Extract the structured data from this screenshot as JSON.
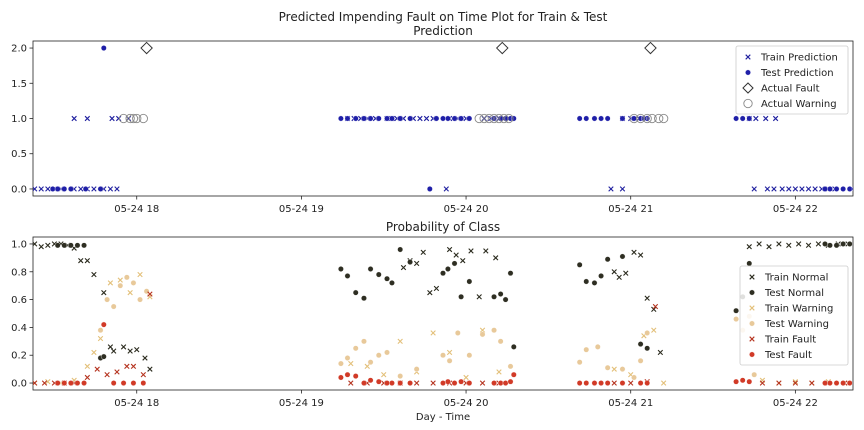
{
  "figure": {
    "suptitle": "Predicted Impending Fault on Time Plot for Train & Test",
    "xlabel": "Day - Time"
  },
  "chart_data": [
    {
      "type": "scatter",
      "title": "Prediction",
      "xlim": [
        17.37,
        22.35
      ],
      "ylim": [
        -0.1,
        2.1
      ],
      "yticks": [
        "0.0",
        "0.5",
        "1.0",
        "1.5",
        "2.0"
      ],
      "ytick_values": [
        0,
        0.5,
        1.0,
        1.5,
        2.0
      ],
      "xticks": [
        "05-24 18",
        "05-24 19",
        "05-24 20",
        "05-24 21",
        "05-24 22"
      ],
      "xtick_values": [
        18,
        19,
        20,
        21,
        22
      ],
      "legend_position": "right",
      "series": [
        {
          "name": "Train Prediction",
          "marker": "x",
          "color": "#1f1f9f",
          "x": [
            17.38,
            17.42,
            17.46,
            17.5,
            17.54,
            17.62,
            17.66,
            17.7,
            17.74,
            17.8,
            17.84,
            17.88,
            17.62,
            17.7,
            17.85,
            17.89,
            17.95,
            19.28,
            19.32,
            19.36,
            19.4,
            19.45,
            19.52,
            19.55,
            19.58,
            19.62,
            19.68,
            19.72,
            19.76,
            19.8,
            19.9,
            19.95,
            20.0,
            19.88,
            20.11,
            20.15,
            20.2,
            20.95,
            21.0,
            21.05,
            21.09,
            20.88,
            20.95,
            21.05,
            21.72,
            21.76,
            21.82,
            21.88,
            21.75,
            21.83,
            21.87,
            21.92,
            21.96,
            22.0,
            22.04,
            22.08,
            22.12,
            22.16,
            22.2,
            22.24
          ],
          "y": [
            0,
            0,
            0,
            0,
            0,
            0,
            0,
            0,
            0,
            0,
            0,
            0,
            1,
            1,
            1,
            1,
            1,
            1,
            1,
            1,
            1,
            1,
            1,
            1,
            1,
            1,
            1,
            1,
            1,
            1,
            1,
            1,
            1,
            0,
            1,
            1,
            1,
            1,
            1,
            1,
            1,
            0,
            0,
            1,
            1,
            1,
            1,
            1,
            0,
            0,
            0,
            0,
            0,
            0,
            0,
            0,
            0,
            0,
            0,
            0
          ]
        },
        {
          "name": "Test Prediction",
          "marker": "dot",
          "color": "#1f1fa8",
          "x": [
            17.49,
            17.52,
            17.56,
            17.6,
            17.78,
            17.8,
            17.69,
            19.24,
            19.28,
            19.33,
            19.38,
            19.42,
            19.47,
            19.52,
            19.55,
            19.6,
            19.66,
            19.82,
            19.86,
            19.89,
            19.93,
            19.97,
            20.02,
            20.17,
            20.21,
            20.24,
            20.27,
            20.29,
            19.78,
            20.69,
            20.73,
            20.78,
            20.82,
            20.86,
            20.95,
            21.02,
            21.06,
            21.1,
            21.64,
            21.68,
            21.72,
            21.08,
            22.18,
            22.21,
            22.25,
            22.29,
            22.33,
            22.36
          ],
          "y": [
            0,
            0,
            0,
            0,
            0,
            2,
            0,
            1,
            1,
            1,
            1,
            1,
            1,
            1,
            1,
            1,
            1,
            1,
            1,
            1,
            1,
            1,
            1,
            1,
            1,
            1,
            1,
            1,
            0,
            1,
            1,
            1,
            1,
            1,
            1,
            1,
            1,
            1,
            1,
            1,
            1,
            1,
            0,
            0,
            0,
            0,
            0,
            0
          ]
        },
        {
          "name": "Actual Fault",
          "marker": "diamond",
          "color": "#333333",
          "x": [
            18.06,
            20.22,
            21.12
          ],
          "y": [
            2,
            2,
            2
          ]
        },
        {
          "name": "Actual Warning",
          "marker": "circle",
          "color": "#8a8a8a",
          "x": [
            17.92,
            17.96,
            18.0,
            18.04,
            17.98,
            20.08,
            20.11,
            20.14,
            20.17,
            20.2,
            20.23,
            20.26,
            21.02,
            21.06,
            21.1,
            21.13,
            21.17,
            21.2
          ],
          "y": [
            1,
            1,
            1,
            1,
            1,
            1,
            1,
            1,
            1,
            1,
            1,
            1,
            1,
            1,
            1,
            1,
            1,
            1
          ]
        }
      ]
    },
    {
      "type": "scatter",
      "title": "Probability of Class",
      "xlim": [
        17.37,
        22.35
      ],
      "ylim": [
        -0.05,
        1.05
      ],
      "yticks": [
        "0.0",
        "0.2",
        "0.4",
        "0.6",
        "0.8",
        "1.0"
      ],
      "ytick_values": [
        0,
        0.2,
        0.4,
        0.6,
        0.8,
        1.0
      ],
      "xticks": [
        "05-24 18",
        "05-24 19",
        "05-24 20",
        "05-24 21",
        "05-24 22"
      ],
      "xtick_values": [
        18,
        19,
        20,
        21,
        22
      ],
      "legend_position": "right",
      "series": [
        {
          "name": "Train Normal",
          "marker": "x",
          "color": "#2b2b1e",
          "x": [
            17.38,
            17.42,
            17.46,
            17.5,
            17.54,
            17.58,
            17.62,
            17.66,
            17.7,
            17.74,
            17.8,
            17.84,
            17.86,
            17.92,
            17.96,
            18.0,
            18.05,
            18.08,
            19.62,
            19.66,
            19.7,
            19.74,
            19.78,
            19.82,
            19.9,
            19.94,
            19.98,
            20.03,
            20.08,
            20.12,
            20.18,
            20.9,
            20.93,
            20.97,
            21.02,
            21.06,
            21.1,
            21.14,
            21.18,
            21.72,
            21.78,
            21.84,
            21.9,
            21.96,
            22.02,
            22.08,
            22.14,
            22.2,
            22.26,
            22.32
          ],
          "y": [
            1.0,
            0.98,
            0.99,
            1.0,
            1.0,
            0.99,
            0.97,
            0.88,
            0.88,
            0.78,
            0.65,
            0.26,
            0.23,
            0.26,
            0.23,
            0.24,
            0.18,
            0.1,
            0.83,
            0.88,
            0.86,
            0.94,
            0.65,
            0.68,
            0.96,
            0.92,
            0.88,
            0.95,
            0.62,
            0.95,
            0.9,
            0.8,
            0.76,
            0.79,
            0.94,
            0.92,
            0.61,
            0.53,
            0.22,
            0.98,
            1.0,
            0.98,
            1.0,
            0.99,
            1.0,
            0.99,
            1.0,
            0.99,
            1.0,
            1.0
          ]
        },
        {
          "name": "Test Normal",
          "marker": "dot",
          "color": "#2e2e22",
          "x": [
            17.52,
            17.56,
            17.6,
            17.64,
            17.68,
            17.78,
            17.8,
            19.24,
            19.28,
            19.33,
            19.38,
            19.42,
            19.47,
            19.52,
            19.55,
            19.6,
            19.66,
            19.86,
            19.89,
            19.93,
            19.97,
            20.02,
            20.17,
            20.21,
            20.24,
            20.27,
            20.29,
            20.69,
            20.73,
            20.78,
            20.82,
            20.86,
            20.95,
            21.06,
            21.1,
            21.64,
            21.68,
            21.72,
            22.18,
            22.21,
            22.25,
            22.29,
            22.33
          ],
          "y": [
            0.99,
            0.99,
            0.99,
            0.99,
            0.99,
            0.18,
            0.19,
            0.82,
            0.77,
            0.65,
            0.61,
            0.82,
            0.78,
            0.75,
            0.72,
            0.96,
            0.87,
            0.79,
            0.82,
            0.86,
            0.62,
            0.73,
            0.62,
            0.64,
            0.6,
            0.79,
            0.26,
            0.85,
            0.73,
            0.72,
            0.77,
            0.89,
            0.91,
            0.28,
            0.25,
            0.52,
            0.62,
            0.86,
            1.0,
            0.99,
            0.99,
            1.0,
            1.0
          ]
        },
        {
          "name": "Train Warning",
          "marker": "x",
          "color": "#e3c07a",
          "x": [
            17.38,
            17.46,
            17.54,
            17.62,
            17.7,
            17.74,
            17.78,
            17.84,
            17.9,
            17.96,
            18.02,
            18.08,
            19.3,
            19.4,
            19.5,
            19.6,
            19.7,
            19.8,
            19.9,
            20.0,
            20.1,
            20.2,
            20.9,
            21.0,
            21.08,
            21.14,
            21.2,
            21.8,
            21.9,
            22.0,
            22.1,
            22.2,
            22.3
          ],
          "y": [
            0.0,
            0.01,
            0.0,
            0.02,
            0.12,
            0.22,
            0.32,
            0.72,
            0.74,
            0.65,
            0.78,
            0.62,
            0.14,
            0.12,
            0.06,
            0.3,
            0.08,
            0.36,
            0.22,
            0.04,
            0.38,
            0.08,
            0.1,
            0.06,
            0.34,
            0.38,
            0.0,
            0.02,
            0.0,
            0.01,
            0.0,
            0.01,
            0.0
          ]
        },
        {
          "name": "Test Warning",
          "marker": "dot",
          "color": "#e8c99a",
          "x": [
            17.78,
            17.82,
            17.86,
            17.9,
            17.94,
            17.98,
            18.02,
            18.06,
            19.24,
            19.28,
            19.33,
            19.38,
            19.42,
            19.47,
            19.52,
            19.6,
            19.7,
            19.86,
            19.9,
            19.95,
            20.02,
            20.1,
            20.17,
            20.21,
            20.27,
            20.69,
            20.73,
            20.8,
            20.86,
            20.95,
            21.02,
            21.06,
            21.1,
            21.64,
            21.68,
            21.72,
            21.75
          ],
          "y": [
            0.38,
            0.6,
            0.55,
            0.7,
            0.76,
            0.72,
            0.6,
            0.66,
            0.14,
            0.18,
            0.25,
            0.3,
            0.15,
            0.2,
            0.22,
            0.05,
            0.1,
            0.2,
            0.16,
            0.36,
            0.2,
            0.35,
            0.38,
            0.3,
            0.12,
            0.15,
            0.24,
            0.26,
            0.11,
            0.1,
            0.04,
            0.16,
            0.36,
            0.46,
            0.38,
            0.48,
            0.06
          ]
        },
        {
          "name": "Train Fault",
          "marker": "x",
          "color": "#b5331f",
          "x": [
            17.38,
            17.44,
            17.5,
            17.56,
            17.62,
            17.7,
            17.76,
            17.82,
            17.88,
            17.94,
            17.98,
            18.04,
            18.08,
            19.3,
            19.4,
            19.5,
            19.6,
            19.7,
            19.8,
            19.9,
            20.0,
            20.1,
            20.2,
            20.9,
            21.0,
            21.1,
            21.15,
            21.8,
            21.9,
            22.0,
            22.1,
            22.2,
            22.3
          ],
          "y": [
            0.0,
            0.0,
            0.0,
            0.0,
            0.0,
            0.04,
            0.1,
            0.06,
            0.08,
            0.12,
            0.12,
            0.06,
            0.64,
            0.0,
            0.0,
            0.0,
            0.0,
            0.0,
            0.0,
            0.0,
            0.0,
            0.0,
            0.0,
            0.0,
            0.0,
            0.01,
            0.55,
            0.0,
            0.0,
            0.0,
            0.0,
            0.0,
            0.0
          ]
        },
        {
          "name": "Test Fault",
          "marker": "dot",
          "color": "#d13a27",
          "x": [
            17.52,
            17.56,
            17.6,
            17.64,
            17.68,
            17.8,
            17.86,
            17.92,
            17.98,
            18.04,
            19.24,
            19.28,
            19.33,
            19.38,
            19.42,
            19.47,
            19.52,
            19.55,
            19.6,
            19.66,
            19.86,
            19.89,
            19.93,
            19.97,
            20.02,
            20.17,
            20.21,
            20.24,
            20.27,
            20.29,
            20.69,
            20.73,
            20.78,
            20.82,
            20.86,
            20.95,
            21.06,
            21.1,
            21.64,
            21.68,
            21.72,
            22.18,
            22.21,
            22.25,
            22.29,
            22.33
          ],
          "y": [
            0.0,
            0.0,
            0.0,
            0.0,
            0.0,
            0.42,
            0.0,
            0.0,
            0.0,
            0.0,
            0.04,
            0.06,
            0.05,
            0.0,
            0.02,
            0.01,
            0.0,
            0.0,
            0.0,
            0.0,
            0.0,
            0.01,
            0.0,
            0.01,
            0.0,
            0.0,
            0.0,
            0.0,
            0.01,
            0.06,
            0.0,
            0.0,
            0.0,
            0.0,
            0.0,
            0.0,
            0.0,
            0.0,
            0.01,
            0.02,
            0.01,
            0.0,
            0.0,
            0.0,
            0.0,
            0.0
          ]
        }
      ]
    }
  ]
}
